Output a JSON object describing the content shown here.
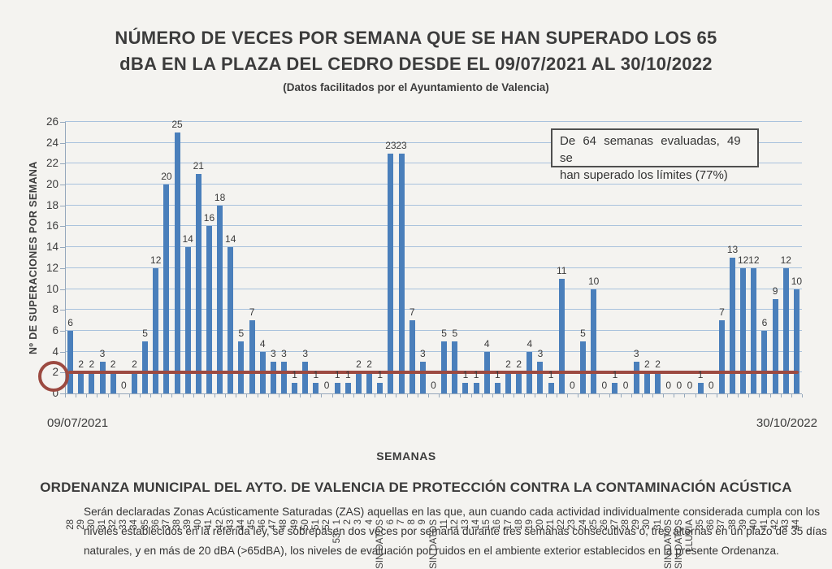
{
  "page": {
    "title_line1": "NÚMERO DE VECES POR SEMANA QUE SE HAN SUPERADO LOS 65",
    "title_line2": "dBA EN LA PLAZA DEL CEDRO DESDE EL 09/07/2021 AL 30/10/2022",
    "subtitle": "(Datos facilitados por el Ayuntamiento de Valencia)"
  },
  "chart_data": {
    "type": "bar",
    "title": "NÚMERO DE VECES POR SEMANA QUE SE HAN SUPERADO LOS 65 dBA EN LA PLAZA DEL CEDRO DESDE EL 09/07/2021 AL 30/10/2022",
    "subtitle": "(Datos facilitados por el Ayuntamiento de Valencia)",
    "xlabel": "SEMANAS",
    "ylabel": "Nº DE SUPERACIONES POR SEMANA",
    "ylim": [
      0,
      26
    ],
    "ytick_step": 2,
    "grid": true,
    "legend_position": "none",
    "bar_color": "#4a7fbb",
    "gridline_color": "#a9c2dd",
    "threshold_line": {
      "value": 2,
      "color": "#9c4a41",
      "note": "circled y-axis value 2"
    },
    "start_date_label": "09/07/2021",
    "end_date_label": "30/10/2022",
    "annotation": {
      "line1": "De 64 semanas evaluadas, 49 se",
      "line2": "han superado los límites (77%)"
    },
    "categories": [
      "28",
      "29",
      "30",
      "31",
      "32",
      "33",
      "34",
      "35",
      "36",
      "37",
      "38",
      "39",
      "40",
      "41",
      "42",
      "43",
      "44",
      "45",
      "46",
      "47",
      "48",
      "49",
      "50",
      "51",
      "52",
      "53 - 1",
      "2",
      "3",
      "4",
      "SIN DATOS",
      "6",
      "7",
      "8",
      "9",
      "SIN DATOS",
      "11",
      "12",
      "13",
      "14",
      "15",
      "16",
      "17",
      "18",
      "19",
      "20",
      "21",
      "22",
      "23",
      "24",
      "25",
      "26",
      "27",
      "28",
      "29",
      "30",
      "31",
      "SIN DATOS",
      "SIN DATOS",
      "LLUVIA",
      "35",
      "36",
      "37",
      "38",
      "39",
      "40",
      "41",
      "42",
      "43",
      "44"
    ],
    "values": [
      6,
      2,
      2,
      3,
      2,
      0,
      2,
      5,
      12,
      20,
      25,
      14,
      21,
      16,
      18,
      14,
      5,
      7,
      4,
      3,
      3,
      1,
      3,
      1,
      0,
      1,
      1,
      2,
      2,
      1,
      23,
      23,
      7,
      3,
      0,
      5,
      5,
      1,
      1,
      4,
      1,
      2,
      2,
      4,
      3,
      1,
      11,
      0,
      5,
      10,
      0,
      1,
      0,
      3,
      2,
      2,
      0,
      0,
      0,
      1,
      0,
      7,
      13,
      12,
      12,
      6,
      9,
      12,
      10
    ]
  },
  "footer": {
    "heading": "ORDENANZA MUNICIPAL DEL AYTO. DE VALENCIA DE PROTECCIÓN CONTRA LA CONTAMINACIÓN ACÚSTICA",
    "body_lines": [
      "Serán declaradas Zonas Acústicamente Saturadas (ZAS) aquellas en las que, aun cuando cada actividad individualmente considerada cumpla con los",
      "niveles establecidos en la referida ley, se sobrepasen dos veces por semana durante tres semanas consecutivas o, tres alternas en un plazo de 35 días",
      "naturales, y en más de 20 dBA (>65dBA), los niveles de evaluación por ruidos en el ambiente exterior establecidos en la presente Ordenanza."
    ]
  }
}
